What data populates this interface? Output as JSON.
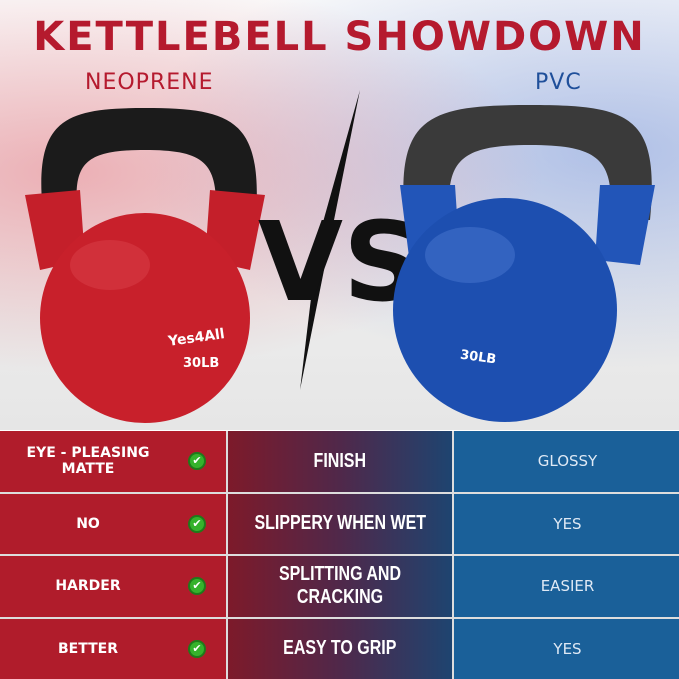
{
  "title": "KETTLEBELL SHOWDOWN",
  "left_label": "NEOPRENE",
  "right_label": "PVC",
  "vs": "VS",
  "left_product": {
    "logo": "Yes4All",
    "weight": "30LB",
    "color": "#c8202b"
  },
  "right_product": {
    "weight": "30LB",
    "color": "#1d4fb0"
  },
  "colors": {
    "title": "#b51a2e",
    "left_col": "#b01c2b",
    "right_col": "#1a6099",
    "check": "#35b22c"
  },
  "rows": [
    {
      "neoprene": "EYE - PLEASING MATTE",
      "feature": "FINISH",
      "pvc": "GLOSSY",
      "icon": "check-icon"
    },
    {
      "neoprene": "NO",
      "feature": "SLIPPERY WHEN WET",
      "pvc": "YES",
      "icon": "check-icon"
    },
    {
      "neoprene": "HARDER",
      "feature": "SPLITTING AND CRACKING",
      "pvc": "EASIER",
      "icon": "check-icon"
    },
    {
      "neoprene": "BETTER",
      "feature": "EASY TO GRIP",
      "pvc": "YES",
      "icon": "check-icon"
    }
  ]
}
